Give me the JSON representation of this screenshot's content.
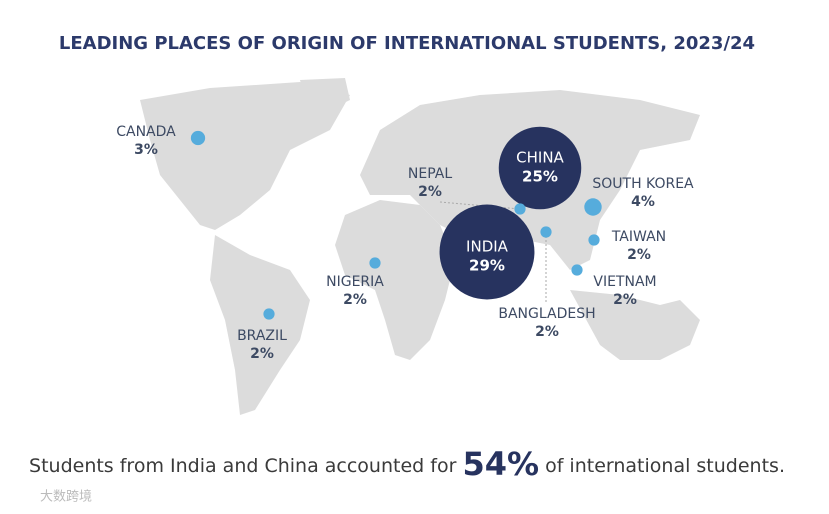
{
  "chart_data": {
    "type": "bubble-map",
    "title": "LEADING PLACES OF ORIGIN OF INTERNATIONAL STUDENTS, 2023/24",
    "categories": [
      "CANADA",
      "CHINA",
      "INDIA",
      "NEPAL",
      "SOUTH KOREA",
      "TAIWAN",
      "BANGLADESH",
      "VIETNAM",
      "NIGERIA",
      "BRAZIL"
    ],
    "values": [
      3,
      25,
      29,
      2,
      4,
      2,
      2,
      2,
      2,
      2
    ],
    "value_labels": [
      "3%",
      "25%",
      "29%",
      "2%",
      "4%",
      "2%",
      "2%",
      "2%",
      "2%",
      "2%"
    ],
    "colors": [
      "#56acdc",
      "#27335f",
      "#27335f",
      "#56acdc",
      "#56acdc",
      "#56acdc",
      "#56acdc",
      "#56acdc",
      "#56acdc",
      "#56acdc"
    ],
    "footnote": {
      "before": "Students from India and China accounted for",
      "highlight": "54%",
      "after": "of international students."
    },
    "watermark": "大数跨境"
  }
}
